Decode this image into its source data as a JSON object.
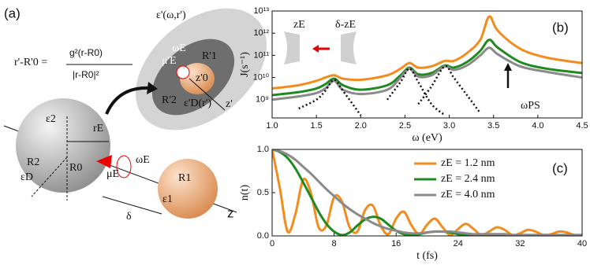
{
  "diagram": {
    "labels": [
      "(a)",
      "r'-R'0 =",
      "g²(r-R0)",
      "|r-R0|²",
      "ε2",
      "R2",
      "rE",
      "R0",
      "εD",
      "ωE",
      "μE",
      "R1",
      "ε1",
      "δ",
      "z",
      "ε'(ω,r')",
      "ωE",
      "μ'E",
      "R'1",
      "z'0",
      "ε'D(r')",
      "R'2",
      "z'"
    ]
  },
  "chart_data": [
    {
      "type": "line",
      "xlabel": "ω (eV)",
      "ylabel": "J(s⁻¹)",
      "log_y": true,
      "annotations": [
        "(b)",
        "zE",
        "δ-zE",
        "ωPS"
      ],
      "x": [
        1.0,
        1.3,
        1.5,
        1.6,
        1.7,
        1.8,
        2.0,
        2.3,
        2.45,
        2.55,
        2.65,
        2.8,
        2.95,
        3.05,
        3.2,
        3.35,
        3.45,
        3.55,
        3.8,
        4.1,
        4.5
      ],
      "xlim": [
        1.0,
        4.5
      ],
      "xticks": [
        {
          "value": 1,
          "label": "1.0"
        },
        {
          "value": 1.5,
          "label": "1.5"
        },
        {
          "value": 2,
          "label": "2.0"
        },
        {
          "value": 2.5,
          "label": "2.5"
        },
        {
          "value": 3,
          "label": "3.0"
        },
        {
          "value": 3.5,
          "label": "3.5"
        },
        {
          "value": 4,
          "label": "4.0"
        },
        {
          "value": 4.5,
          "label": "4.5"
        }
      ],
      "ylim": [
        150000000.0,
        10000000000000.0
      ],
      "yticks": [
        {
          "value": 1000000000.0,
          "label": "10⁹"
        },
        {
          "value": 10000000000.0,
          "label": "10¹⁰"
        },
        {
          "value": 100000000000.0,
          "label": "10¹¹"
        },
        {
          "value": 1000000000000.0,
          "label": "10¹²"
        },
        {
          "value": 10000000000000.0,
          "label": "10¹³"
        }
      ],
      "series": [
        {
          "color": "#f28c1e",
          "values": [
            3200000000.0,
            4500000000.0,
            7100000000.0,
            10000000000.0,
            12600000000.0,
            8900000000.0,
            7900000000.0,
            12600000000.0,
            25000000000.0,
            45000000000.0,
            28000000000.0,
            32000000000.0,
            56000000000.0,
            56000000000.0,
            126000000000.0,
            500000000000.0,
            5600000000000.0,
            1260000000000.0,
            200000000000.0,
            79000000000.0,
            45000000000.0
          ]
        },
        {
          "color": "#1f8a1f",
          "values": [
            1600000000.0,
            2200000000.0,
            3200000000.0,
            5000000000.0,
            8900000000.0,
            4500000000.0,
            2800000000.0,
            4500000000.0,
            12600000000.0,
            28000000000.0,
            14000000000.0,
            16000000000.0,
            35000000000.0,
            28000000000.0,
            50000000000.0,
            160000000000.0,
            500000000000.0,
            220000000000.0,
            50000000000.0,
            25000000000.0,
            16000000000.0
          ]
        },
        {
          "color": "#8a8a8a",
          "values": [
            1000000000.0,
            1400000000.0,
            2000000000.0,
            3200000000.0,
            7100000000.0,
            2800000000.0,
            1800000000.0,
            2800000000.0,
            10000000000.0,
            25000000000.0,
            11000000000.0,
            12600000000.0,
            32000000000.0,
            22000000000.0,
            35000000000.0,
            100000000000.0,
            220000000000.0,
            110000000000.0,
            32000000000.0,
            18000000000.0,
            10000000000.0
          ]
        },
        {
          "color": "#111111",
          "style": "dotted",
          "values": [
            null,
            400000000.0,
            1000000000.0,
            2500000000.0,
            7900000000.0,
            2500000000.0,
            200000000.0,
            null,
            null,
            null,
            null,
            null,
            null,
            null,
            null,
            null,
            null,
            null,
            null,
            null,
            null
          ]
        },
        {
          "color": "#111111",
          "style": "dotted",
          "values": [
            null,
            null,
            null,
            null,
            null,
            null,
            null,
            1000000000.0,
            6300000000.0,
            25000000000.0,
            6300000000.0,
            630000000.0,
            200000000.0,
            null,
            null,
            null,
            null,
            null,
            null,
            null,
            null
          ]
        },
        {
          "color": "#111111",
          "style": "dotted",
          "values": [
            null,
            null,
            null,
            null,
            null,
            null,
            null,
            null,
            null,
            null,
            630000000.0,
            4000000000.0,
            32000000000.0,
            10000000000.0,
            1600000000.0,
            250000000.0,
            null,
            null,
            null,
            null,
            null
          ]
        }
      ]
    },
    {
      "type": "line",
      "xlabel": "t (fs)",
      "ylabel": "n(t)",
      "legend": "upper right",
      "annotations": [
        "(c)"
      ],
      "x": [
        0,
        1,
        2,
        3,
        4,
        5,
        6,
        7,
        8,
        9,
        10,
        11,
        12,
        13,
        14,
        15,
        16,
        17,
        18,
        19,
        20,
        21,
        22,
        23,
        24,
        25,
        26,
        27,
        28,
        29,
        30,
        31,
        32,
        33,
        34,
        35,
        36,
        37,
        38,
        39,
        40
      ],
      "xlim": [
        0,
        40
      ],
      "xticks": [
        0,
        8,
        16,
        24,
        32,
        40
      ],
      "ylim": [
        0,
        1
      ],
      "yticks": [
        {
          "value": 0,
          "label": "0.0"
        },
        {
          "value": 0.5,
          "label": "0.5"
        },
        {
          "value": 1,
          "label": "1.0"
        }
      ],
      "series": [
        {
          "name": "zE = 1.2 nm",
          "color": "#f28c1e",
          "values": [
            1.0,
            0.55,
            0.05,
            0.25,
            0.65,
            0.5,
            0.1,
            0.12,
            0.45,
            0.4,
            0.1,
            0.05,
            0.3,
            0.35,
            0.12,
            0.02,
            0.2,
            0.28,
            0.12,
            0.02,
            0.13,
            0.2,
            0.1,
            0.01,
            0.08,
            0.14,
            0.08,
            0.01,
            0.05,
            0.1,
            0.07,
            0.01,
            0.03,
            0.07,
            0.05,
            0.01,
            0.02,
            0.05,
            0.04,
            0.01,
            0.01
          ]
        },
        {
          "name": "zE = 2.4 nm",
          "color": "#1f8a1f",
          "values": [
            1.0,
            0.97,
            0.9,
            0.78,
            0.62,
            0.45,
            0.28,
            0.14,
            0.05,
            0.01,
            0.04,
            0.12,
            0.19,
            0.22,
            0.2,
            0.13,
            0.06,
            0.02,
            0.01,
            0.02,
            0.04,
            0.05,
            0.05,
            0.04,
            0.02,
            0.01,
            0.01,
            0.01,
            0.01,
            0.01,
            0.01,
            0.01,
            0.01,
            0.01,
            0.01,
            0.01,
            0.01,
            0.01,
            0.01,
            0.01,
            0.01
          ]
        },
        {
          "name": "zE = 4.0 nm",
          "color": "#8a8a8a",
          "values": [
            1.0,
            0.98,
            0.94,
            0.88,
            0.8,
            0.72,
            0.63,
            0.54,
            0.46,
            0.38,
            0.31,
            0.25,
            0.2,
            0.15,
            0.11,
            0.08,
            0.06,
            0.04,
            0.03,
            0.03,
            0.04,
            0.05,
            0.05,
            0.05,
            0.04,
            0.03,
            0.02,
            0.02,
            0.02,
            0.02,
            0.02,
            0.01,
            0.01,
            0.01,
            0.01,
            0.01,
            0.01,
            0.01,
            0.01,
            0.01,
            0.01
          ]
        }
      ]
    }
  ]
}
